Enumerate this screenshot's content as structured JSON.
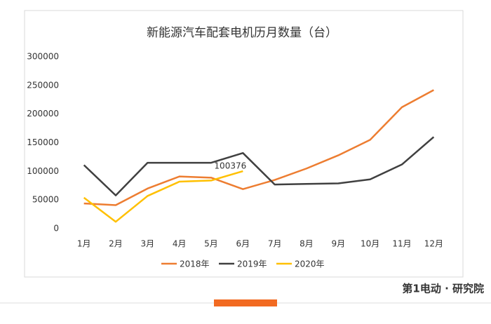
{
  "chart_data": {
    "type": "line",
    "title": "新能源汽车配套电机历月数量（台）",
    "categories": [
      "1月",
      "2月",
      "3月",
      "4月",
      "5月",
      "6月",
      "7月",
      "8月",
      "9月",
      "10月",
      "11月",
      "12月"
    ],
    "series": [
      {
        "name": "2018年",
        "color": "#ed7d31",
        "values": [
          44000,
          41000,
          70000,
          91000,
          89000,
          69000,
          85000,
          105000,
          128000,
          155000,
          212000,
          242000
        ]
      },
      {
        "name": "2019年",
        "color": "#404040",
        "values": [
          111000,
          58000,
          115000,
          115000,
          115000,
          132000,
          77000,
          78000,
          79000,
          86000,
          112000,
          160000
        ]
      },
      {
        "name": "2020年",
        "color": "#ffc000",
        "values": [
          54000,
          12000,
          57000,
          82000,
          84000,
          100376,
          null,
          null,
          null,
          null,
          null,
          null
        ],
        "value_labels": [
          null,
          null,
          null,
          null,
          null,
          "100376",
          null,
          null,
          null,
          null,
          null,
          null
        ]
      }
    ],
    "ylim": [
      0,
      300000
    ],
    "yticks": [
      0,
      50000,
      100000,
      150000,
      200000,
      250000,
      300000
    ],
    "grid": false,
    "legend": "bottom"
  },
  "footer": {
    "brand": "第1电动 · 研究院"
  }
}
